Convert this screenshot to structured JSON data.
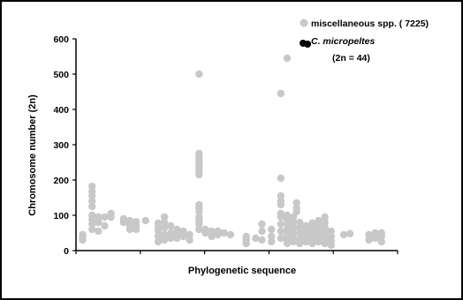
{
  "chart_data": {
    "type": "scatter",
    "title": "",
    "xlabel": "Phylogenetic sequence",
    "ylabel": "Chromosome number (2n)",
    "ylim": [
      0,
      600
    ],
    "yticks": [
      "0",
      "100",
      "200",
      "300",
      "400",
      "500",
      "600"
    ],
    "xlim": [
      0,
      100
    ],
    "grid": false,
    "legend_position": "top-right",
    "series": [
      {
        "name": "miscellaneous spp. ( 7225)",
        "color": "#c8c8c8",
        "points": [
          [
            1,
            30
          ],
          [
            1,
            38
          ],
          [
            1,
            45
          ],
          [
            4,
            60
          ],
          [
            4,
            75
          ],
          [
            4,
            88
          ],
          [
            4,
            100
          ],
          [
            4,
            125
          ],
          [
            4,
            140
          ],
          [
            4,
            155
          ],
          [
            4,
            168
          ],
          [
            4,
            182
          ],
          [
            6,
            55
          ],
          [
            6,
            80
          ],
          [
            6,
            95
          ],
          [
            8,
            70
          ],
          [
            8,
            95
          ],
          [
            10,
            95
          ],
          [
            10,
            105
          ],
          [
            14,
            80
          ],
          [
            14,
            90
          ],
          [
            16,
            60
          ],
          [
            16,
            72
          ],
          [
            16,
            85
          ],
          [
            18,
            60
          ],
          [
            18,
            70
          ],
          [
            18,
            82
          ],
          [
            21,
            85
          ],
          [
            25,
            25
          ],
          [
            25,
            40
          ],
          [
            25,
            55
          ],
          [
            25,
            65
          ],
          [
            25,
            78
          ],
          [
            27,
            30
          ],
          [
            27,
            45
          ],
          [
            27,
            65
          ],
          [
            27,
            80
          ],
          [
            27,
            95
          ],
          [
            29,
            35
          ],
          [
            29,
            50
          ],
          [
            29,
            70
          ],
          [
            31,
            35
          ],
          [
            31,
            45
          ],
          [
            31,
            60
          ],
          [
            33,
            40
          ],
          [
            33,
            55
          ],
          [
            35,
            30
          ],
          [
            35,
            45
          ],
          [
            38,
            60
          ],
          [
            38,
            75
          ],
          [
            38,
            85
          ],
          [
            38,
            95
          ],
          [
            38,
            110
          ],
          [
            38,
            120
          ],
          [
            38,
            130
          ],
          [
            38,
            215
          ],
          [
            38,
            225
          ],
          [
            38,
            235
          ],
          [
            38,
            245
          ],
          [
            38,
            255
          ],
          [
            38,
            265
          ],
          [
            38,
            275
          ],
          [
            38,
            500
          ],
          [
            40,
            50
          ],
          [
            40,
            60
          ],
          [
            42,
            40
          ],
          [
            42,
            55
          ],
          [
            44,
            45
          ],
          [
            44,
            55
          ],
          [
            46,
            50
          ],
          [
            48,
            45
          ],
          [
            53,
            20
          ],
          [
            53,
            30
          ],
          [
            53,
            40
          ],
          [
            56,
            35
          ],
          [
            58,
            30
          ],
          [
            58,
            55
          ],
          [
            58,
            75
          ],
          [
            61,
            25
          ],
          [
            61,
            40
          ],
          [
            61,
            60
          ],
          [
            64,
            35
          ],
          [
            64,
            55
          ],
          [
            64,
            75
          ],
          [
            64,
            95
          ],
          [
            64,
            105
          ],
          [
            64,
            130
          ],
          [
            64,
            140
          ],
          [
            64,
            155
          ],
          [
            64,
            205
          ],
          [
            64,
            445
          ],
          [
            66,
            20
          ],
          [
            66,
            30
          ],
          [
            66,
            45
          ],
          [
            66,
            60
          ],
          [
            66,
            75
          ],
          [
            66,
            90
          ],
          [
            66,
            100
          ],
          [
            66,
            545
          ],
          [
            68,
            25
          ],
          [
            68,
            35
          ],
          [
            68,
            50
          ],
          [
            68,
            65
          ],
          [
            68,
            80
          ],
          [
            68,
            95
          ],
          [
            69,
            110
          ],
          [
            69,
            120
          ],
          [
            69,
            135
          ],
          [
            70,
            20
          ],
          [
            70,
            35
          ],
          [
            70,
            50
          ],
          [
            70,
            65
          ],
          [
            70,
            80
          ],
          [
            72,
            25
          ],
          [
            72,
            40
          ],
          [
            72,
            55
          ],
          [
            72,
            70
          ],
          [
            74,
            20
          ],
          [
            74,
            35
          ],
          [
            74,
            50
          ],
          [
            74,
            65
          ],
          [
            74,
            78
          ],
          [
            76,
            25
          ],
          [
            76,
            40
          ],
          [
            76,
            55
          ],
          [
            76,
            70
          ],
          [
            76,
            85
          ],
          [
            78,
            20
          ],
          [
            78,
            35
          ],
          [
            78,
            50
          ],
          [
            78,
            65
          ],
          [
            78,
            80
          ],
          [
            78,
            95
          ],
          [
            80,
            15
          ],
          [
            80,
            28
          ],
          [
            80,
            40
          ],
          [
            80,
            55
          ],
          [
            84,
            45
          ],
          [
            86,
            48
          ],
          [
            92,
            30
          ],
          [
            92,
            45
          ],
          [
            94,
            35
          ],
          [
            94,
            50
          ],
          [
            96,
            25
          ],
          [
            96,
            40
          ],
          [
            96,
            50
          ]
        ]
      },
      {
        "name": "C. micropeltes",
        "name_note": "(2n = 44)",
        "color": "#000000",
        "points": [
          [
            72.5,
            585
          ]
        ]
      }
    ]
  }
}
